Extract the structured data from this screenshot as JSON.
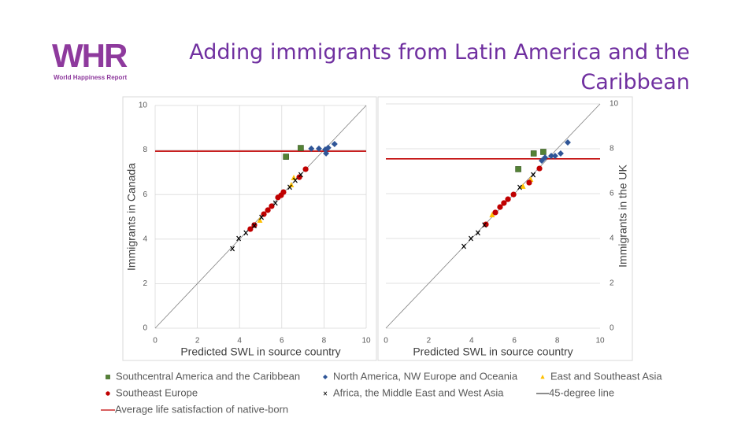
{
  "logo": {
    "mark": "WHR",
    "name": "World Happiness Report"
  },
  "title": [
    "Adding immigrants from Latin America and the",
    "Caribbean"
  ],
  "chart_data": [
    {
      "type": "scatter",
      "xlabel": "Predicted SWL in source country",
      "ylabel": "Immigrants in Canada",
      "yaxis_side": "left",
      "xlim": [
        0,
        10
      ],
      "ylim": [
        0,
        10
      ],
      "xticks": [
        0,
        2,
        4,
        6,
        8,
        10
      ],
      "yticks": [
        0,
        2,
        4,
        6,
        8,
        10
      ],
      "grid": true,
      "diagonal": {
        "name": "45-degree line",
        "color": "#7f7f7f"
      },
      "hline": {
        "name": "Average life satisfaction of native-born",
        "value": 7.95,
        "color": "#c00000"
      },
      "series": [
        {
          "name": "Southcentral America and the Caribbean",
          "color": "#548235",
          "marker": "square",
          "x": [
            6.9,
            6.2
          ],
          "values": [
            8.09,
            7.7
          ]
        },
        {
          "name": "North America, NW Europe and Oceania",
          "color": "#2f5597",
          "marker": "diamond",
          "x": [
            7.4,
            7.76,
            8.06,
            8.2,
            8.1,
            8.5
          ],
          "values": [
            8.06,
            8.06,
            8.02,
            8.1,
            7.85,
            8.27
          ]
        },
        {
          "name": "East and Southeast Asia",
          "color": "#ffc000",
          "marker": "triangle",
          "x": [
            6.57,
            4.96,
            6.45
          ],
          "values": [
            6.75,
            4.84,
            6.43
          ]
        },
        {
          "name": "Southeast Europe",
          "color": "#c00000",
          "marker": "circle",
          "x": [
            7.13,
            6.83,
            5.97,
            5.82,
            5.52,
            5.34,
            5.15,
            4.7,
            4.51,
            6.08
          ],
          "values": [
            7.14,
            6.78,
            5.97,
            5.87,
            5.48,
            5.3,
            5.12,
            4.63,
            4.45,
            6.11
          ]
        },
        {
          "name": "Africa, the Middle East and West Asia",
          "color": "#000000",
          "marker": "x",
          "x": [
            3.66,
            3.96,
            4.3,
            4.7,
            5.04,
            5.7,
            6.38,
            6.9,
            6.64
          ],
          "values": [
            3.57,
            4.03,
            4.28,
            4.6,
            4.98,
            5.62,
            6.33,
            6.89,
            6.64
          ]
        }
      ]
    },
    {
      "type": "scatter",
      "xlabel": "Predicted SWL in source country",
      "ylabel": "Immigrants in the UK",
      "yaxis_side": "right",
      "xlim": [
        0,
        10
      ],
      "ylim": [
        0,
        10
      ],
      "xticks": [
        0,
        2,
        4,
        6,
        8,
        10
      ],
      "yticks": [
        0,
        2,
        4,
        6,
        8,
        10
      ],
      "grid": true,
      "diagonal": {
        "color": "#7f7f7f"
      },
      "hline": {
        "value": 7.55,
        "color": "#c00000"
      },
      "series": [
        {
          "color": "#548235",
          "marker": "square",
          "x": [
            6.9,
            7.35,
            6.18
          ],
          "values": [
            7.79,
            7.86,
            7.09
          ]
        },
        {
          "color": "#2f5597",
          "marker": "diamond",
          "x": [
            7.72,
            7.9,
            8.16,
            8.49,
            7.28,
            7.43
          ],
          "values": [
            7.68,
            7.68,
            7.79,
            8.28,
            7.47,
            7.61
          ]
        },
        {
          "color": "#ffc000",
          "marker": "triangle",
          "x": [
            6.76,
            4.96,
            6.4
          ],
          "values": [
            6.63,
            5.05,
            6.32
          ]
        },
        {
          "color": "#c00000",
          "marker": "circle",
          "x": [
            7.17,
            6.69,
            5.96,
            5.7,
            5.51,
            5.33,
            4.67,
            5.11
          ],
          "values": [
            7.12,
            6.49,
            5.96,
            5.75,
            5.58,
            5.4,
            4.63,
            5.16
          ]
        },
        {
          "color": "#000000",
          "marker": "x",
          "x": [
            3.64,
            3.97,
            4.3,
            4.6,
            6.25,
            6.88
          ],
          "values": [
            3.65,
            4.0,
            4.25,
            4.6,
            6.28,
            6.84
          ]
        }
      ]
    }
  ]
}
